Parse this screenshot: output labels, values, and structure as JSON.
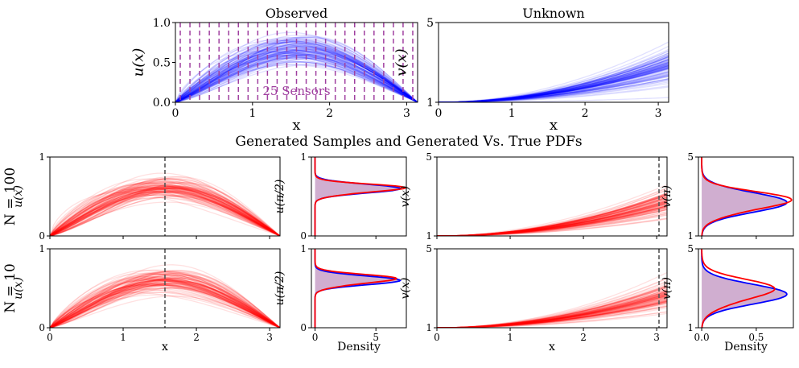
{
  "colors": {
    "observed": "#0000ff",
    "generated": "#ff0000",
    "sensor": "#a040a0",
    "fill": "#c8a0c8",
    "refline": "#555555"
  },
  "suptitle": "Generated Samples and Generated Vs. True PDFs",
  "row_labels": [
    "N = 100",
    "N = 10"
  ],
  "chart_data": [
    {
      "id": "observed",
      "type": "line",
      "title": "Observed",
      "xlabel": "x",
      "ylabel": "u(x)",
      "xlim": [
        0,
        3.1416
      ],
      "ylim": [
        0,
        1.0
      ],
      "xticks": [
        0,
        1,
        2,
        3
      ],
      "yticks": [
        0.0,
        0.5,
        1.0
      ],
      "ytick_labels": [
        "0.0",
        "0.5",
        "1.0"
      ],
      "func": "u",
      "amp_mean": 0.62,
      "amp_spread": 0.09,
      "num_samples": 100,
      "color": "#0000ff",
      "annotation": "25 Sensors",
      "num_sensors": 25
    },
    {
      "id": "unknown",
      "type": "line",
      "title": "Unknown",
      "xlabel": "x",
      "ylabel": "v(x)",
      "xlim": [
        0,
        3.1416
      ],
      "ylim": [
        1,
        5
      ],
      "xticks": [
        0,
        1,
        2,
        3
      ],
      "yticks": [
        1,
        5
      ],
      "ytick_labels": [
        "1",
        "5"
      ],
      "func": "v",
      "amp_mean": 1.8,
      "amp_spread": 0.45,
      "num_samples": 100,
      "color": "#0000ff"
    },
    {
      "id": "gen_u_100",
      "type": "line",
      "xlabel": "",
      "ylabel": "u(x)",
      "xlim": [
        0,
        3.1416
      ],
      "ylim": [
        0,
        1
      ],
      "xticks": [
        0,
        1,
        2,
        3
      ],
      "yticks": [
        0,
        1
      ],
      "ytick_labels": [
        "0",
        "1"
      ],
      "func": "u",
      "amp_mean": 0.57,
      "amp_spread": 0.06,
      "num_samples": 100,
      "color": "#ff0000",
      "vline": 1.5708,
      "show_xticklabels": false
    },
    {
      "id": "pdf_u_100",
      "type": "line",
      "xlabel": "",
      "ylabel": "u(π/2)",
      "xlim": [
        -0.3,
        7.5
      ],
      "ylim": [
        0,
        1
      ],
      "xticks": [
        0,
        5
      ],
      "yticks": [
        0,
        1
      ],
      "ytick_labels": [
        "0",
        "1"
      ],
      "show_xticklabels": false,
      "true_pdf": {
        "mean": 0.6,
        "sd": 0.056,
        "peak": 7.0
      },
      "gen_pdf": {
        "mean": 0.598,
        "sd": 0.054,
        "peak": 7.2
      }
    },
    {
      "id": "gen_v_100",
      "type": "line",
      "xlabel": "",
      "ylabel": "v(x)",
      "xlim": [
        0,
        3.1416
      ],
      "ylim": [
        1,
        5
      ],
      "xticks": [
        0,
        1,
        2,
        3
      ],
      "yticks": [
        1,
        5
      ],
      "ytick_labels": [
        "1",
        "5"
      ],
      "func": "v",
      "amp_mean": 1.7,
      "amp_spread": 0.4,
      "num_samples": 100,
      "color": "#ff0000",
      "vline": 3.1416,
      "show_xticklabels": false
    },
    {
      "id": "pdf_v_100",
      "type": "line",
      "xlabel": "",
      "ylabel": "v(π)",
      "xlim": [
        -0.03,
        0.84
      ],
      "ylim": [
        1,
        5
      ],
      "xticks": [
        0.0,
        0.5
      ],
      "yticks": [
        1,
        5
      ],
      "ytick_labels": [
        "1",
        "5"
      ],
      "show_xticklabels": false,
      "true_pdf": {
        "mean": 2.7,
        "sd": 0.5,
        "peak": 0.78
      },
      "gen_pdf": {
        "mean": 2.72,
        "sd": 0.48,
        "peak": 0.8
      }
    },
    {
      "id": "gen_u_10",
      "type": "line",
      "xlabel": "x",
      "ylabel": "u(x)",
      "xlim": [
        0,
        3.1416
      ],
      "ylim": [
        0,
        1
      ],
      "xticks": [
        0,
        1,
        2,
        3
      ],
      "yticks": [
        0,
        1
      ],
      "ytick_labels": [
        "0",
        "1"
      ],
      "func": "u",
      "amp_mean": 0.57,
      "amp_spread": 0.07,
      "num_samples": 100,
      "color": "#ff0000",
      "vline": 1.5708,
      "show_xticklabels": true
    },
    {
      "id": "pdf_u_10",
      "type": "line",
      "xlabel": "Density",
      "ylabel": "u(π/2)",
      "xlim": [
        -0.3,
        7.5
      ],
      "ylim": [
        0,
        1
      ],
      "xticks": [
        0,
        5
      ],
      "yticks": [
        0,
        1
      ],
      "ytick_labels": [
        "0",
        "1"
      ],
      "show_xticklabels": true,
      "true_pdf": {
        "mean": 0.6,
        "sd": 0.056,
        "peak": 7.0
      },
      "gen_pdf": {
        "mean": 0.61,
        "sd": 0.06,
        "peak": 6.5
      }
    },
    {
      "id": "gen_v_10",
      "type": "line",
      "xlabel": "x",
      "ylabel": "v(x)",
      "xlim": [
        0,
        3.1416
      ],
      "ylim": [
        1,
        5
      ],
      "xticks": [
        0,
        1,
        2,
        3
      ],
      "yticks": [
        1,
        5
      ],
      "ytick_labels": [
        "1",
        "5"
      ],
      "func": "v",
      "amp_mean": 1.6,
      "amp_spread": 0.38,
      "num_samples": 100,
      "color": "#ff0000",
      "vline": 3.1416,
      "show_xticklabels": true
    },
    {
      "id": "pdf_v_10",
      "type": "line",
      "xlabel": "Density",
      "ylabel": "v(π)",
      "xlim": [
        -0.03,
        0.84
      ],
      "ylim": [
        1,
        5
      ],
      "xticks": [
        0.0,
        0.5
      ],
      "yticks": [
        1,
        5
      ],
      "ytick_labels": [
        "1",
        "5"
      ],
      "show_xticklabels": true,
      "true_pdf": {
        "mean": 2.7,
        "sd": 0.5,
        "peak": 0.78
      },
      "gen_pdf": {
        "mean": 2.85,
        "sd": 0.55,
        "peak": 0.65
      }
    }
  ]
}
